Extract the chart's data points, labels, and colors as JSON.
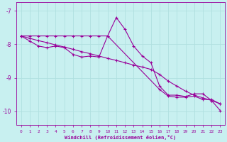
{
  "xlabel": "Windchill (Refroidissement éolien,°C)",
  "background_color": "#c8f0f0",
  "grid_color": "#b0e0e0",
  "line_color": "#990099",
  "xlim": [
    -0.5,
    23.5
  ],
  "ylim": [
    -10.4,
    -6.75
  ],
  "yticks": [
    -10,
    -9,
    -8,
    -7
  ],
  "xticks": [
    0,
    1,
    2,
    3,
    4,
    5,
    6,
    7,
    8,
    9,
    10,
    11,
    12,
    13,
    14,
    15,
    16,
    17,
    18,
    19,
    20,
    21,
    22,
    23
  ],
  "curve1_x": [
    0,
    1,
    2,
    3,
    4,
    5,
    6,
    7,
    8,
    9,
    10,
    11,
    12,
    13,
    14,
    15,
    16,
    17,
    18,
    19,
    20,
    21,
    22,
    23
  ],
  "curve1_y": [
    -7.75,
    -7.9,
    -8.05,
    -8.1,
    -8.05,
    -8.1,
    -8.3,
    -8.38,
    -8.35,
    -8.38,
    -7.75,
    -7.2,
    -7.55,
    -8.05,
    -8.35,
    -8.55,
    -9.25,
    -9.52,
    -9.52,
    -9.56,
    -9.48,
    -9.48,
    -9.68,
    -9.98
  ],
  "curve2_x": [
    0,
    1,
    2,
    3,
    4,
    5,
    6,
    7,
    8,
    9,
    10,
    16,
    17,
    18,
    19,
    20,
    21,
    22,
    23
  ],
  "curve2_y": [
    -7.75,
    -7.75,
    -7.75,
    -7.75,
    -7.75,
    -7.75,
    -7.75,
    -7.75,
    -7.75,
    -7.75,
    -7.75,
    -9.35,
    -9.55,
    -9.58,
    -9.58,
    -9.55,
    -9.65,
    -9.65,
    -9.78
  ],
  "curve3_x": [
    0,
    1,
    2,
    3,
    4,
    5,
    6,
    7,
    8,
    9,
    10,
    11,
    12,
    13,
    14,
    15,
    16,
    17,
    18,
    19,
    20,
    21,
    22,
    23
  ],
  "curve3_y": [
    -7.75,
    -7.82,
    -7.89,
    -7.95,
    -8.02,
    -8.08,
    -8.15,
    -8.22,
    -8.28,
    -8.35,
    -8.42,
    -8.48,
    -8.55,
    -8.62,
    -8.68,
    -8.75,
    -8.9,
    -9.1,
    -9.25,
    -9.4,
    -9.52,
    -9.6,
    -9.68,
    -9.78
  ]
}
